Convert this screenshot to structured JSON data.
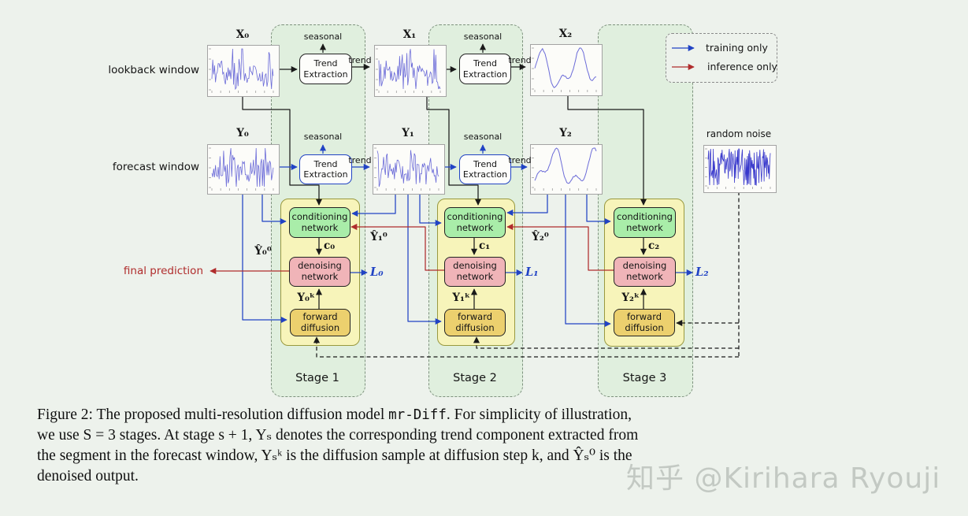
{
  "figure": {
    "rows": {
      "lookback_label": "lookback window",
      "forecast_label": "forecast window",
      "final_prediction_label": "final prediction"
    },
    "plot_titles": {
      "x0": "X₀",
      "x1": "X₁",
      "x2": "X₂",
      "y0": "Y₀",
      "y1": "Y₁",
      "y2": "Y₂"
    },
    "random_noise_label": "random noise",
    "trend_extraction_label": "Trend Extraction",
    "seasonal_label": "seasonal",
    "trend_label": "trend",
    "legend": {
      "training": "training only",
      "inference": "inference only"
    },
    "stages": [
      {
        "title": "Stage 1",
        "conditioning": "conditioning network",
        "denoising": "denoising network",
        "forward_diffusion": "forward diffusion",
        "cond_output": "c₀",
        "diffusion_sample": "Y₀ᵏ",
        "loss": "L₀",
        "denoised_output": "Ŷ₀⁰"
      },
      {
        "title": "Stage 2",
        "conditioning": "conditioning network",
        "denoising": "denoising network",
        "forward_diffusion": "forward diffusion",
        "cond_output": "c₁",
        "diffusion_sample": "Y₁ᵏ",
        "loss": "L₁",
        "denoised_output": "Ŷ₁⁰"
      },
      {
        "title": "Stage 3",
        "conditioning": "conditioning network",
        "denoising": "denoising network",
        "forward_diffusion": "forward diffusion",
        "cond_output": "c₂",
        "diffusion_sample": "Y₂ᵏ",
        "loss": "L₂",
        "denoised_output": "Ŷ₂⁰"
      }
    ],
    "colors": {
      "training_blue": "#2143c4",
      "inference_red": "#b02c2c",
      "stage_fill": "#e0efde",
      "panel_fill": "#f7f4ba",
      "conditioning_fill": "#a9eda9",
      "denoising_fill": "#f0b4b8",
      "forward_fill": "#ecd06e"
    }
  },
  "caption": {
    "prefix": "Figure 2: The proposed multi-resolution diffusion model ",
    "code": "mr-Diff",
    "suffix": ". For simplicity of illustration,",
    "line2": "we use S = 3 stages. At stage s + 1, Yₛ denotes the corresponding trend component extracted from",
    "line3": "the segment in the forecast window, Yₛᵏ is the diffusion sample at diffusion step k, and Ŷₛ⁰ is the",
    "line4": "denoised output."
  },
  "watermark": "知乎 @Kirihara Ryouji"
}
